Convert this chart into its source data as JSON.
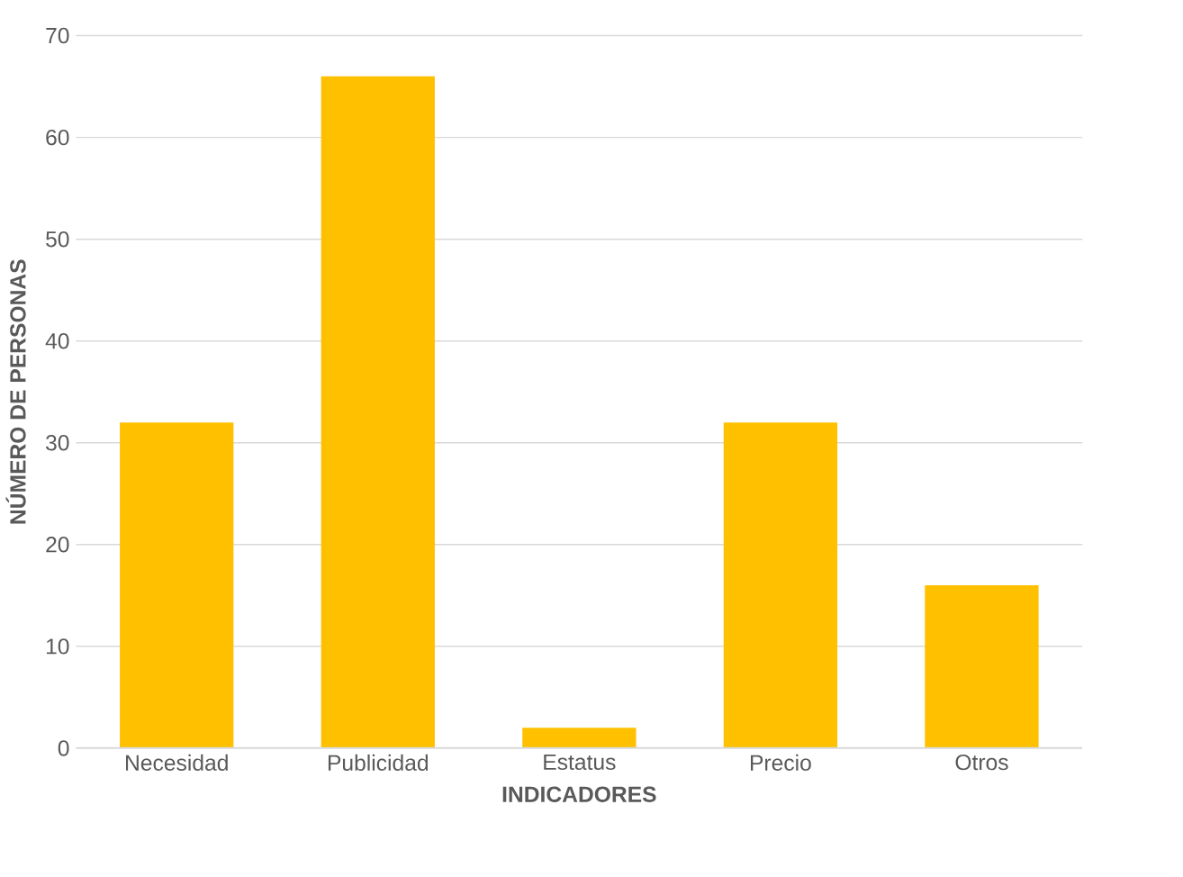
{
  "chart_data": {
    "type": "bar",
    "categories": [
      "Necesidad",
      "Publicidad",
      "Estatus",
      "Precio",
      "Otros"
    ],
    "values": [
      32,
      66,
      2,
      32,
      16
    ],
    "color": "#ffc000",
    "xlabel": "INDICADORES",
    "ylabel": "NÚMERO DE PERSONAS",
    "ylim": [
      0,
      70
    ],
    "yticks": [
      0,
      10,
      20,
      30,
      40,
      50,
      60,
      70
    ],
    "grid": "y"
  }
}
